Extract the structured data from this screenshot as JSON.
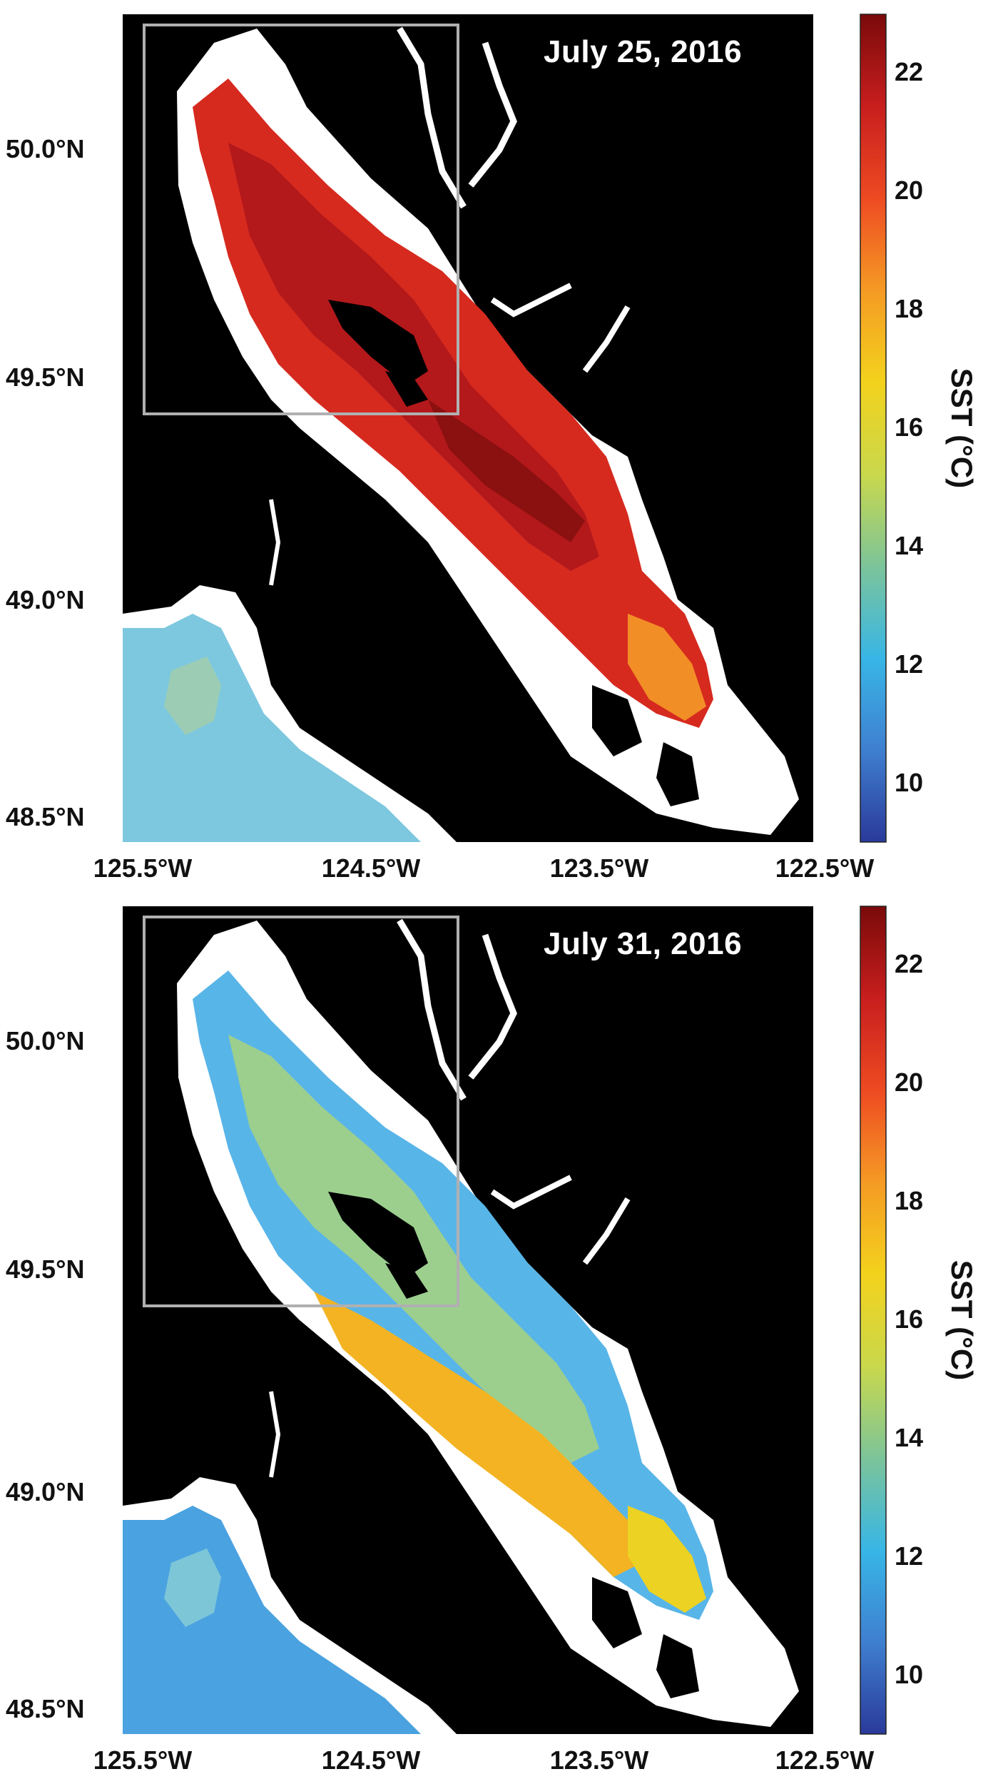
{
  "colorbar": {
    "title": "SST (°C)",
    "ticks": [
      "22",
      "20",
      "18",
      "16",
      "14",
      "12",
      "10"
    ],
    "range": [
      9,
      23
    ],
    "colormap": [
      "#7a0a0a",
      "#c81e1e",
      "#ee4a22",
      "#f59a24",
      "#f3d21c",
      "#c9d84c",
      "#7cc49a",
      "#38b6e6",
      "#3f7fd0",
      "#2a3a9a"
    ]
  },
  "axes": {
    "y_ticks": [
      "50.0°N",
      "49.5°N",
      "49.0°N",
      "48.5°N"
    ],
    "x_ticks": [
      "125.5°W",
      "124.5°W",
      "123.5°W",
      "122.5°W"
    ]
  },
  "panels": [
    {
      "date": "July 25, 2016",
      "palette": [
        "#8b1010",
        "#b3181b",
        "#d62a1f",
        "#ec5a20",
        "#f28e26",
        "#f5c01f",
        "#9ccdb4",
        "#7dc8de",
        "#5eb8e6",
        "#3f8fd8"
      ]
    },
    {
      "date": "July 31, 2016",
      "palette": [
        "#4aa2e0",
        "#58b5e8",
        "#7cc6d8",
        "#9ccf8e",
        "#c7d65a",
        "#ebd223",
        "#f3b323",
        "#f18a27",
        "#e85a22",
        "#d52b20"
      ]
    }
  ]
}
